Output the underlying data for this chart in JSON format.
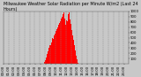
{
  "title": "Milwaukee Weather Solar Radiation per Minute W/m2 (Last 24 Hours)",
  "title_fontsize": 3.5,
  "background_color": "#c8c8c8",
  "plot_bg_color": "#c8c8c8",
  "bar_color": "#ff0000",
  "grid_color": "#888888",
  "tick_fontsize": 2.8,
  "ylim": [
    0,
    1000
  ],
  "ytick_values": [
    100,
    200,
    300,
    400,
    500,
    600,
    700,
    800,
    900,
    1000
  ],
  "x_tick_labels": [
    "00:00",
    "01:00",
    "02:00",
    "03:00",
    "04:00",
    "05:00",
    "06:00",
    "07:00",
    "08:00",
    "09:00",
    "10:00",
    "11:00",
    "12:00",
    "13:00",
    "14:00",
    "15:00",
    "16:00",
    "17:00",
    "18:00",
    "19:00",
    "20:00",
    "21:00",
    "22:00",
    "23:00"
  ],
  "solar_data": [
    0,
    0,
    0,
    0,
    0,
    0,
    0,
    0,
    0,
    0,
    0,
    0,
    0,
    0,
    0,
    0,
    0,
    0,
    0,
    0,
    0,
    0,
    0,
    0,
    0,
    0,
    0,
    0,
    0,
    0,
    0,
    0,
    0,
    0,
    0,
    0,
    0,
    0,
    0,
    0,
    0,
    0,
    0,
    0,
    0,
    0,
    0,
    0,
    0,
    0,
    0,
    0,
    0,
    0,
    0,
    0,
    0,
    0,
    0,
    0,
    0,
    0,
    0,
    0,
    0,
    0,
    0,
    0,
    0,
    0,
    0,
    0,
    0,
    0,
    0,
    0,
    0,
    0,
    0,
    0,
    0,
    0,
    0,
    0,
    0,
    0,
    0,
    0,
    0,
    0,
    2,
    5,
    10,
    18,
    30,
    50,
    70,
    95,
    120,
    150,
    180,
    210,
    240,
    270,
    300,
    330,
    360,
    380,
    350,
    320,
    400,
    450,
    500,
    520,
    480,
    510,
    540,
    560,
    580,
    600,
    620,
    640,
    660,
    680,
    700,
    720,
    740,
    760,
    780,
    800,
    820,
    840,
    860,
    880,
    900,
    920,
    940,
    960,
    980,
    900,
    870,
    840,
    750,
    800,
    830,
    860,
    820,
    900,
    940,
    960,
    980,
    900,
    850,
    800,
    760,
    700,
    650,
    600,
    550,
    500,
    450,
    400,
    350,
    300,
    250,
    200,
    150,
    100,
    80,
    60,
    40,
    25,
    15,
    8,
    3,
    0,
    0,
    0,
    0,
    0,
    0,
    0,
    0,
    0,
    0,
    0,
    0,
    0,
    0,
    0,
    0,
    0,
    0,
    0,
    0,
    0,
    0,
    0,
    0,
    0,
    0,
    0,
    0,
    0,
    0,
    0,
    0,
    0,
    0,
    0,
    0,
    0,
    0,
    0,
    0,
    0,
    0,
    0,
    0,
    0,
    0,
    0,
    0,
    0,
    0,
    0,
    0,
    0,
    0,
    0,
    0,
    0,
    0,
    0,
    0,
    0,
    0,
    0,
    0,
    0,
    0,
    0,
    0,
    0,
    0,
    0,
    0,
    0,
    0,
    0,
    0,
    0,
    0,
    0,
    0,
    0,
    0,
    0,
    0,
    0,
    0,
    0,
    0,
    0,
    0,
    0,
    0,
    0,
    0,
    0,
    0,
    0,
    0,
    0,
    0,
    0,
    0,
    0,
    0,
    0,
    0,
    0,
    0,
    0,
    0,
    0,
    0,
    0
  ]
}
